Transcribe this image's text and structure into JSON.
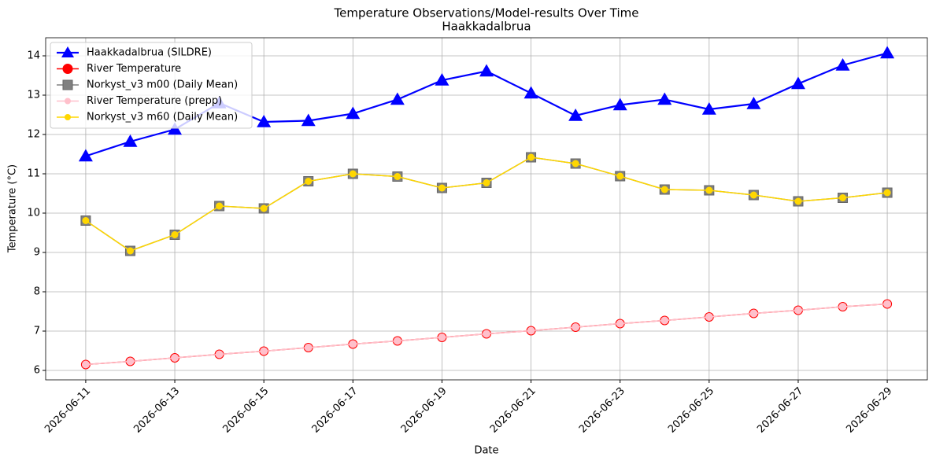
{
  "chart_data": {
    "type": "line",
    "title": "Temperature Observations/Model-results Over Time",
    "subtitle": "Haakkadalbrua",
    "x_label": "Date",
    "y_label": "Temperature (°C)",
    "x": [
      "2026-06-11",
      "2026-06-12",
      "2026-06-13",
      "2026-06-14",
      "2026-06-15",
      "2026-06-16",
      "2026-06-17",
      "2026-06-18",
      "2026-06-19",
      "2026-06-20",
      "2026-06-21",
      "2026-06-22",
      "2026-06-23",
      "2026-06-24",
      "2026-06-25",
      "2026-06-26",
      "2026-06-27",
      "2026-06-28",
      "2026-06-29"
    ],
    "xlim": [
      "2026-06-10T02:24",
      "2026-06-29T21:36"
    ],
    "xticks": [
      "2026-06-11",
      "2026-06-13",
      "2026-06-15",
      "2026-06-17",
      "2026-06-19",
      "2026-06-21",
      "2026-06-23",
      "2026-06-25",
      "2026-06-27",
      "2026-06-29"
    ],
    "ylim": [
      5.76,
      14.46
    ],
    "yticks": [
      6,
      7,
      8,
      9,
      10,
      11,
      12,
      13,
      14
    ],
    "grid": true,
    "legend": "upper left",
    "series": [
      {
        "name": "Haakkadalbrua (SILDRE)",
        "color": "#0000ff",
        "marker": "triangle",
        "values": [
          11.45,
          11.82,
          12.13,
          12.8,
          12.32,
          12.35,
          12.53,
          12.89,
          13.38,
          13.61,
          13.05,
          12.48,
          12.75,
          12.89,
          12.64,
          12.78,
          13.29,
          13.76,
          14.07
        ]
      },
      {
        "name": "River Temperature",
        "color": "#ff0000",
        "marker": "circle",
        "values": [
          6.15,
          6.23,
          6.32,
          6.41,
          6.49,
          6.58,
          6.67,
          6.75,
          6.84,
          6.93,
          7.01,
          7.1,
          7.19,
          7.27,
          7.36,
          7.45,
          7.53,
          7.62,
          7.69
        ]
      },
      {
        "name": "Norkyst_v3 m00 (Daily Mean)",
        "color": "#808080",
        "marker": "square",
        "values": [
          9.81,
          9.04,
          9.45,
          10.18,
          10.12,
          10.81,
          11.0,
          10.93,
          10.64,
          10.77,
          11.42,
          11.26,
          10.94,
          10.6,
          10.58,
          10.46,
          10.3,
          10.39,
          10.52
        ]
      },
      {
        "name": "River Temperature (prepp)",
        "color": "#ffc0cb",
        "marker": "dot",
        "values": [
          6.15,
          6.23,
          6.32,
          6.41,
          6.49,
          6.58,
          6.67,
          6.75,
          6.84,
          6.93,
          7.01,
          7.1,
          7.19,
          7.27,
          7.36,
          7.45,
          7.53,
          7.62,
          7.69
        ]
      },
      {
        "name": "Norkyst_v3 m60 (Daily Mean)",
        "color": "#ffd700",
        "marker": "dot",
        "values": [
          9.81,
          9.04,
          9.45,
          10.18,
          10.12,
          10.81,
          11.0,
          10.93,
          10.64,
          10.77,
          11.42,
          11.26,
          10.94,
          10.6,
          10.58,
          10.46,
          10.3,
          10.39,
          10.52
        ]
      }
    ]
  }
}
